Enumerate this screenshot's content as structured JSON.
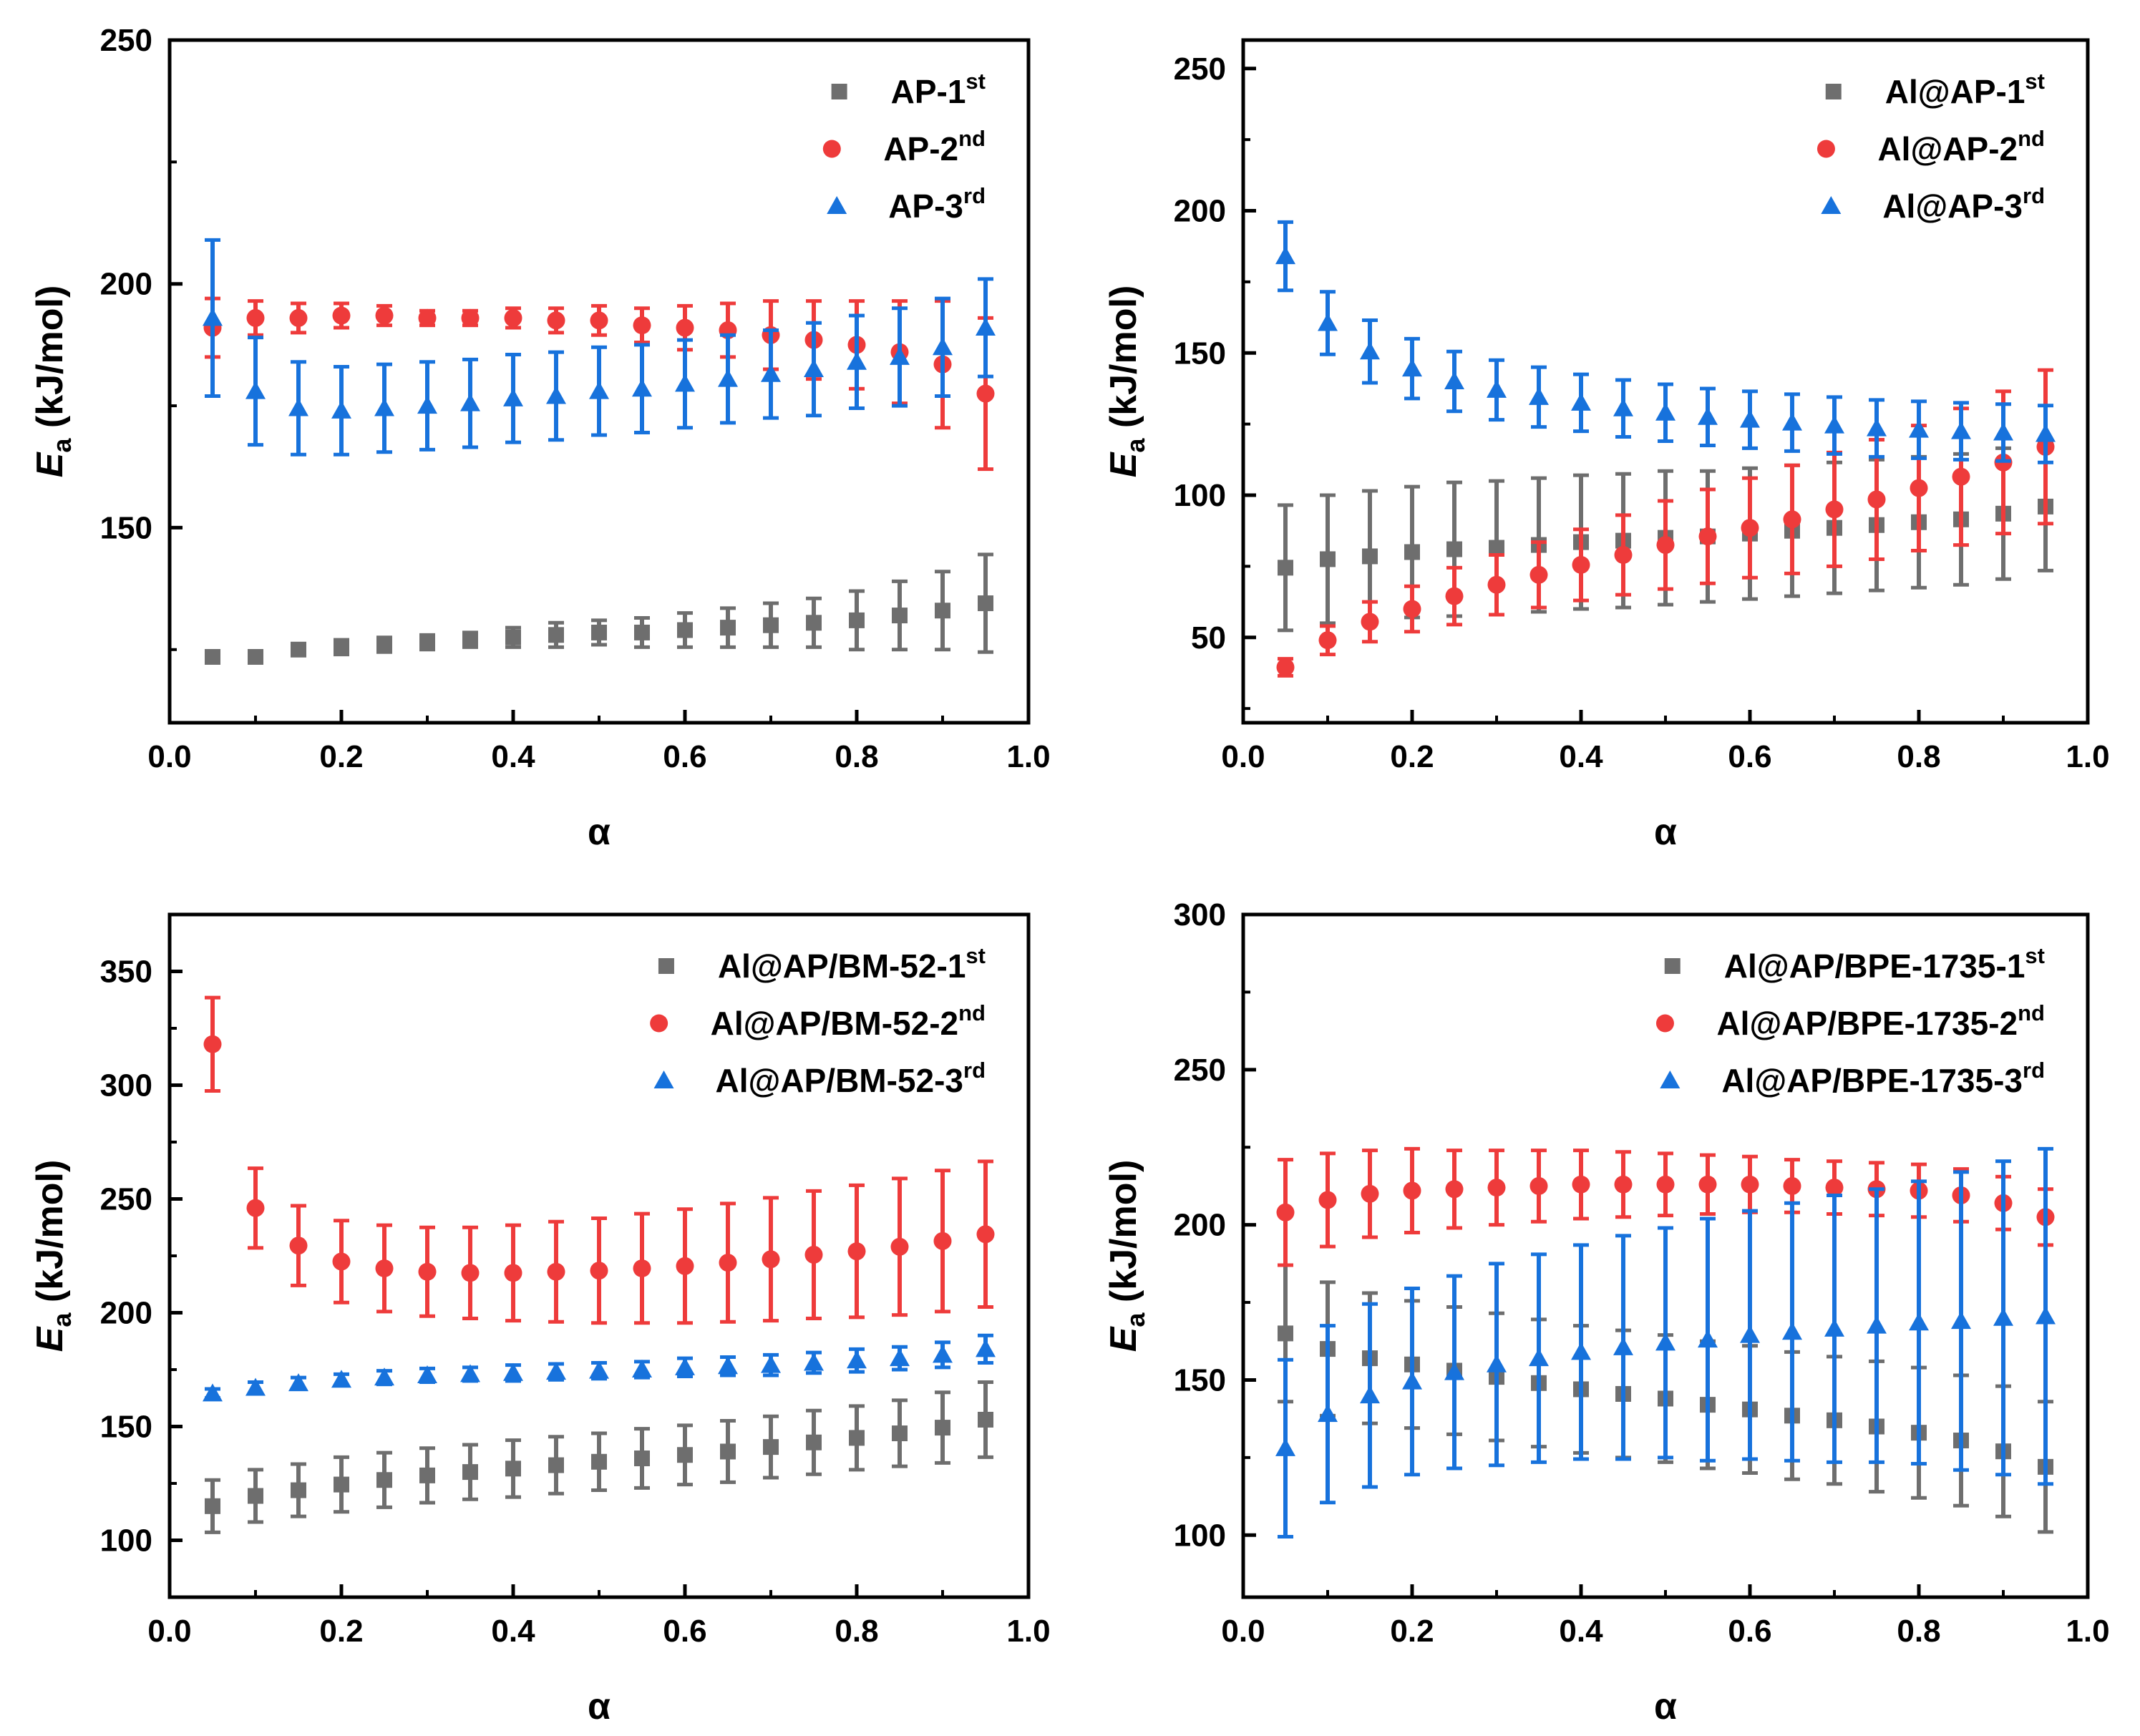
{
  "chart_data": [
    {
      "type": "scatter",
      "xlabel": "α",
      "ylabel": "E",
      "ylabel_sub": "a",
      "ylabel_unit": " (kJ/mol)",
      "xlim": [
        0,
        1.0
      ],
      "ylim": [
        110,
        250
      ],
      "xticks": [
        "0.0",
        "0.2",
        "0.4",
        "0.6",
        "0.8",
        "1.0"
      ],
      "yticks": [
        "150",
        "200",
        "250"
      ],
      "ytick_values": [
        150,
        200,
        250
      ],
      "x": [
        0.05,
        0.1,
        0.15,
        0.2,
        0.25,
        0.3,
        0.35,
        0.4,
        0.45,
        0.5,
        0.55,
        0.6,
        0.65,
        0.7,
        0.75,
        0.8,
        0.85,
        0.9,
        0.95
      ],
      "legend_position": "top-right",
      "series": [
        {
          "name": "AP-1",
          "sup": "st",
          "color": "#6e6e6e",
          "marker": "square",
          "values": [
            123.5,
            123.5,
            125,
            125.5,
            126,
            126.5,
            127,
            127.5,
            128,
            128.5,
            128.5,
            129,
            129.5,
            130,
            130.5,
            131,
            132,
            133,
            134.5
          ],
          "errors": [
            1,
            1,
            1,
            1.5,
            1.5,
            1.5,
            1.5,
            2,
            2.5,
            2.5,
            3,
            3.5,
            4,
            4.5,
            5,
            6,
            7,
            8,
            10
          ]
        },
        {
          "name": "AP-2",
          "sup": "nd",
          "color": "#ee3b3b",
          "marker": "circle",
          "values": [
            191,
            193,
            193,
            193.5,
            193.5,
            193,
            193,
            193,
            192.5,
            192.5,
            191.5,
            191,
            190.5,
            189.5,
            188.5,
            187.5,
            186,
            183.5,
            177.5
          ],
          "errors": [
            6,
            3.5,
            3,
            2.5,
            2,
            1.5,
            1.5,
            2,
            2.5,
            3,
            3.5,
            4.5,
            5.5,
            7,
            8,
            9,
            10.5,
            13,
            15.5
          ]
        },
        {
          "name": "AP-3",
          "sup": "rd",
          "color": "#1772dc",
          "marker": "triangle",
          "values": [
            193,
            178,
            174.5,
            174,
            174.5,
            175,
            175.5,
            176.5,
            177,
            178,
            178.5,
            179.5,
            180.5,
            181.5,
            182.5,
            184,
            185,
            187,
            191
          ],
          "errors": [
            16,
            11,
            9.5,
            9,
            9,
            9,
            9,
            9,
            9,
            9,
            9,
            9,
            9,
            9,
            9.5,
            9.5,
            10,
            10,
            10
          ]
        }
      ]
    },
    {
      "type": "scatter",
      "xlabel": "α",
      "ylabel": "E",
      "ylabel_sub": "a",
      "ylabel_unit": " (kJ/mol)",
      "xlim": [
        0,
        1.0
      ],
      "ylim": [
        20,
        260
      ],
      "xticks": [
        "0.0",
        "0.2",
        "0.4",
        "0.6",
        "0.8",
        "1.0"
      ],
      "yticks": [
        "50",
        "100",
        "150",
        "200",
        "250"
      ],
      "ytick_values": [
        50,
        100,
        150,
        200,
        250
      ],
      "x": [
        0.05,
        0.1,
        0.15,
        0.2,
        0.25,
        0.3,
        0.35,
        0.4,
        0.45,
        0.5,
        0.55,
        0.6,
        0.65,
        0.7,
        0.75,
        0.8,
        0.85,
        0.9,
        0.95
      ],
      "legend_position": "top-right",
      "series": [
        {
          "name": "Al@AP-1",
          "sup": "st",
          "color": "#6e6e6e",
          "marker": "square",
          "values": [
            74.5,
            77.5,
            78.5,
            80,
            81,
            81.5,
            82.5,
            83.5,
            84,
            85,
            85.5,
            86.5,
            87.5,
            88.5,
            89.5,
            90.5,
            91.5,
            93.5,
            96
          ],
          "errors": [
            22,
            22.5,
            23,
            23,
            23.5,
            23.5,
            23.5,
            23.5,
            23.5,
            23.5,
            23,
            23,
            23,
            23,
            23,
            23,
            23,
            23,
            22.5
          ]
        },
        {
          "name": "Al@AP-2",
          "sup": "nd",
          "color": "#ee3b3b",
          "marker": "circle",
          "values": [
            39.5,
            49,
            55.5,
            60,
            64.5,
            68.5,
            72,
            75.5,
            79,
            82.5,
            85.5,
            88.5,
            91.5,
            95,
            98.5,
            102.5,
            106.5,
            111.5,
            117
          ],
          "errors": [
            3,
            5,
            7,
            8,
            10,
            10.5,
            11.5,
            12.5,
            14,
            15.5,
            16.5,
            17.5,
            19,
            20,
            21,
            22,
            24,
            25,
            27
          ]
        },
        {
          "name": "Al@AP-3",
          "sup": "rd",
          "color": "#1772dc",
          "marker": "triangle",
          "values": [
            184,
            160.5,
            150.5,
            144.5,
            140,
            137,
            134.5,
            132.5,
            130.5,
            129,
            127.5,
            126.5,
            125.5,
            124.5,
            123.5,
            123,
            122.5,
            122,
            121.5
          ],
          "errors": [
            12,
            11,
            11,
            10.5,
            10.5,
            10.5,
            10.5,
            10,
            10,
            10,
            10,
            10,
            10,
            10,
            10,
            10,
            10,
            10,
            10
          ]
        }
      ]
    },
    {
      "type": "scatter",
      "xlabel": "α",
      "ylabel": "E",
      "ylabel_sub": "a",
      "ylabel_unit": " (kJ/mol)",
      "xlim": [
        0,
        1.0
      ],
      "ylim": [
        75,
        375
      ],
      "xticks": [
        "0.0",
        "0.2",
        "0.4",
        "0.6",
        "0.8",
        "1.0"
      ],
      "yticks": [
        "100",
        "150",
        "200",
        "250",
        "300",
        "350"
      ],
      "ytick_values": [
        100,
        150,
        200,
        250,
        300,
        350
      ],
      "x": [
        0.05,
        0.1,
        0.15,
        0.2,
        0.25,
        0.3,
        0.35,
        0.4,
        0.45,
        0.5,
        0.55,
        0.6,
        0.65,
        0.7,
        0.75,
        0.8,
        0.85,
        0.9,
        0.95
      ],
      "legend_position": "top-right",
      "series": [
        {
          "name": "Al@AP/BM-52-1",
          "sup": "st",
          "color": "#6e6e6e",
          "marker": "square",
          "values": [
            115,
            119.5,
            122,
            124.5,
            126.5,
            128.5,
            130,
            131.5,
            133,
            134.5,
            136,
            137.5,
            139,
            141,
            143,
            145,
            147,
            149.5,
            153
          ],
          "errors": [
            11.5,
            11.5,
            11.5,
            12,
            12,
            12,
            12,
            12.5,
            12.5,
            12.5,
            13,
            13,
            13.5,
            13.5,
            14,
            14,
            14.5,
            15.5,
            16.5
          ]
        },
        {
          "name": "Al@AP/BM-52-2",
          "sup": "nd",
          "color": "#ee3b3b",
          "marker": "circle",
          "values": [
            318,
            246,
            229.5,
            222.5,
            219.5,
            218,
            217.5,
            217.5,
            218,
            218.5,
            219.5,
            220.5,
            222,
            223.5,
            225.5,
            227,
            229,
            231.5,
            234.5
          ],
          "errors": [
            20.5,
            17.5,
            17.5,
            18,
            19,
            19.5,
            20,
            21,
            22,
            23,
            24,
            25,
            26,
            27,
            28,
            29,
            30,
            31,
            32
          ]
        },
        {
          "name": "Al@AP/BM-52-3",
          "sup": "rd",
          "color": "#1772dc",
          "marker": "triangle",
          "values": [
            164.5,
            167,
            169,
            170.5,
            171.5,
            172.5,
            173,
            173.5,
            174,
            174.5,
            175,
            176,
            176.5,
            177,
            178,
            179,
            180,
            181.5,
            184
          ],
          "errors": [
            2,
            2.5,
            2.5,
            2.5,
            3,
            3,
            3,
            3.5,
            3.5,
            3.5,
            3.5,
            4,
            4,
            4.5,
            4.5,
            5,
            5,
            5.5,
            6
          ]
        }
      ]
    },
    {
      "type": "scatter",
      "xlabel": "α",
      "ylabel": "E",
      "ylabel_sub": "a",
      "ylabel_unit": " (kJ/mol)",
      "xlim": [
        0,
        1.0
      ],
      "ylim": [
        80,
        300
      ],
      "xticks": [
        "0.0",
        "0.2",
        "0.4",
        "0.6",
        "0.8",
        "1.0"
      ],
      "yticks": [
        "100",
        "150",
        "200",
        "250",
        "300"
      ],
      "ytick_values": [
        100,
        150,
        200,
        250,
        300
      ],
      "x": [
        0.05,
        0.1,
        0.15,
        0.2,
        0.25,
        0.3,
        0.35,
        0.4,
        0.45,
        0.5,
        0.55,
        0.6,
        0.65,
        0.7,
        0.75,
        0.8,
        0.85,
        0.9,
        0.95
      ],
      "legend_position": "top-right",
      "series": [
        {
          "name": "Al@AP/BPE-1735-1",
          "sup": "st",
          "color": "#6e6e6e",
          "marker": "square",
          "values": [
            165,
            160,
            157,
            155,
            153,
            151,
            149,
            147,
            145.5,
            144,
            142,
            140.5,
            138.5,
            137,
            135,
            133,
            130.5,
            127,
            122
          ],
          "errors": [
            22,
            21.5,
            21,
            20.5,
            20.5,
            20.5,
            20.5,
            20.5,
            20.5,
            20.5,
            20.5,
            20.5,
            20.5,
            20.5,
            21,
            21,
            21,
            21,
            21
          ]
        },
        {
          "name": "Al@AP/BPE-1735-2",
          "sup": "nd",
          "color": "#ee3b3b",
          "marker": "circle",
          "values": [
            204,
            208,
            210,
            211,
            211.5,
            212,
            212.5,
            213,
            213,
            213,
            213,
            213,
            212.5,
            212,
            211.5,
            211,
            209.5,
            207,
            202.5
          ],
          "errors": [
            17,
            15,
            14,
            13.5,
            12.5,
            12,
            11.5,
            11,
            10.5,
            10,
            9.5,
            9,
            8.5,
            8.5,
            8.5,
            8.5,
            8.5,
            8.5,
            9
          ]
        },
        {
          "name": "Al@AP/BPE-1735-3",
          "sup": "rd",
          "color": "#1772dc",
          "marker": "triangle",
          "values": [
            128,
            139,
            145,
            149.5,
            152.5,
            155,
            157,
            159,
            160.5,
            162,
            163,
            164.5,
            165.5,
            166.5,
            167.5,
            168.5,
            169,
            170,
            170.5
          ],
          "errors": [
            28.5,
            28.5,
            29.5,
            30,
            31,
            32.5,
            33.5,
            34.5,
            36,
            37,
            39,
            40,
            41.5,
            43,
            44,
            45.5,
            48,
            50.5,
            54
          ]
        }
      ]
    }
  ]
}
